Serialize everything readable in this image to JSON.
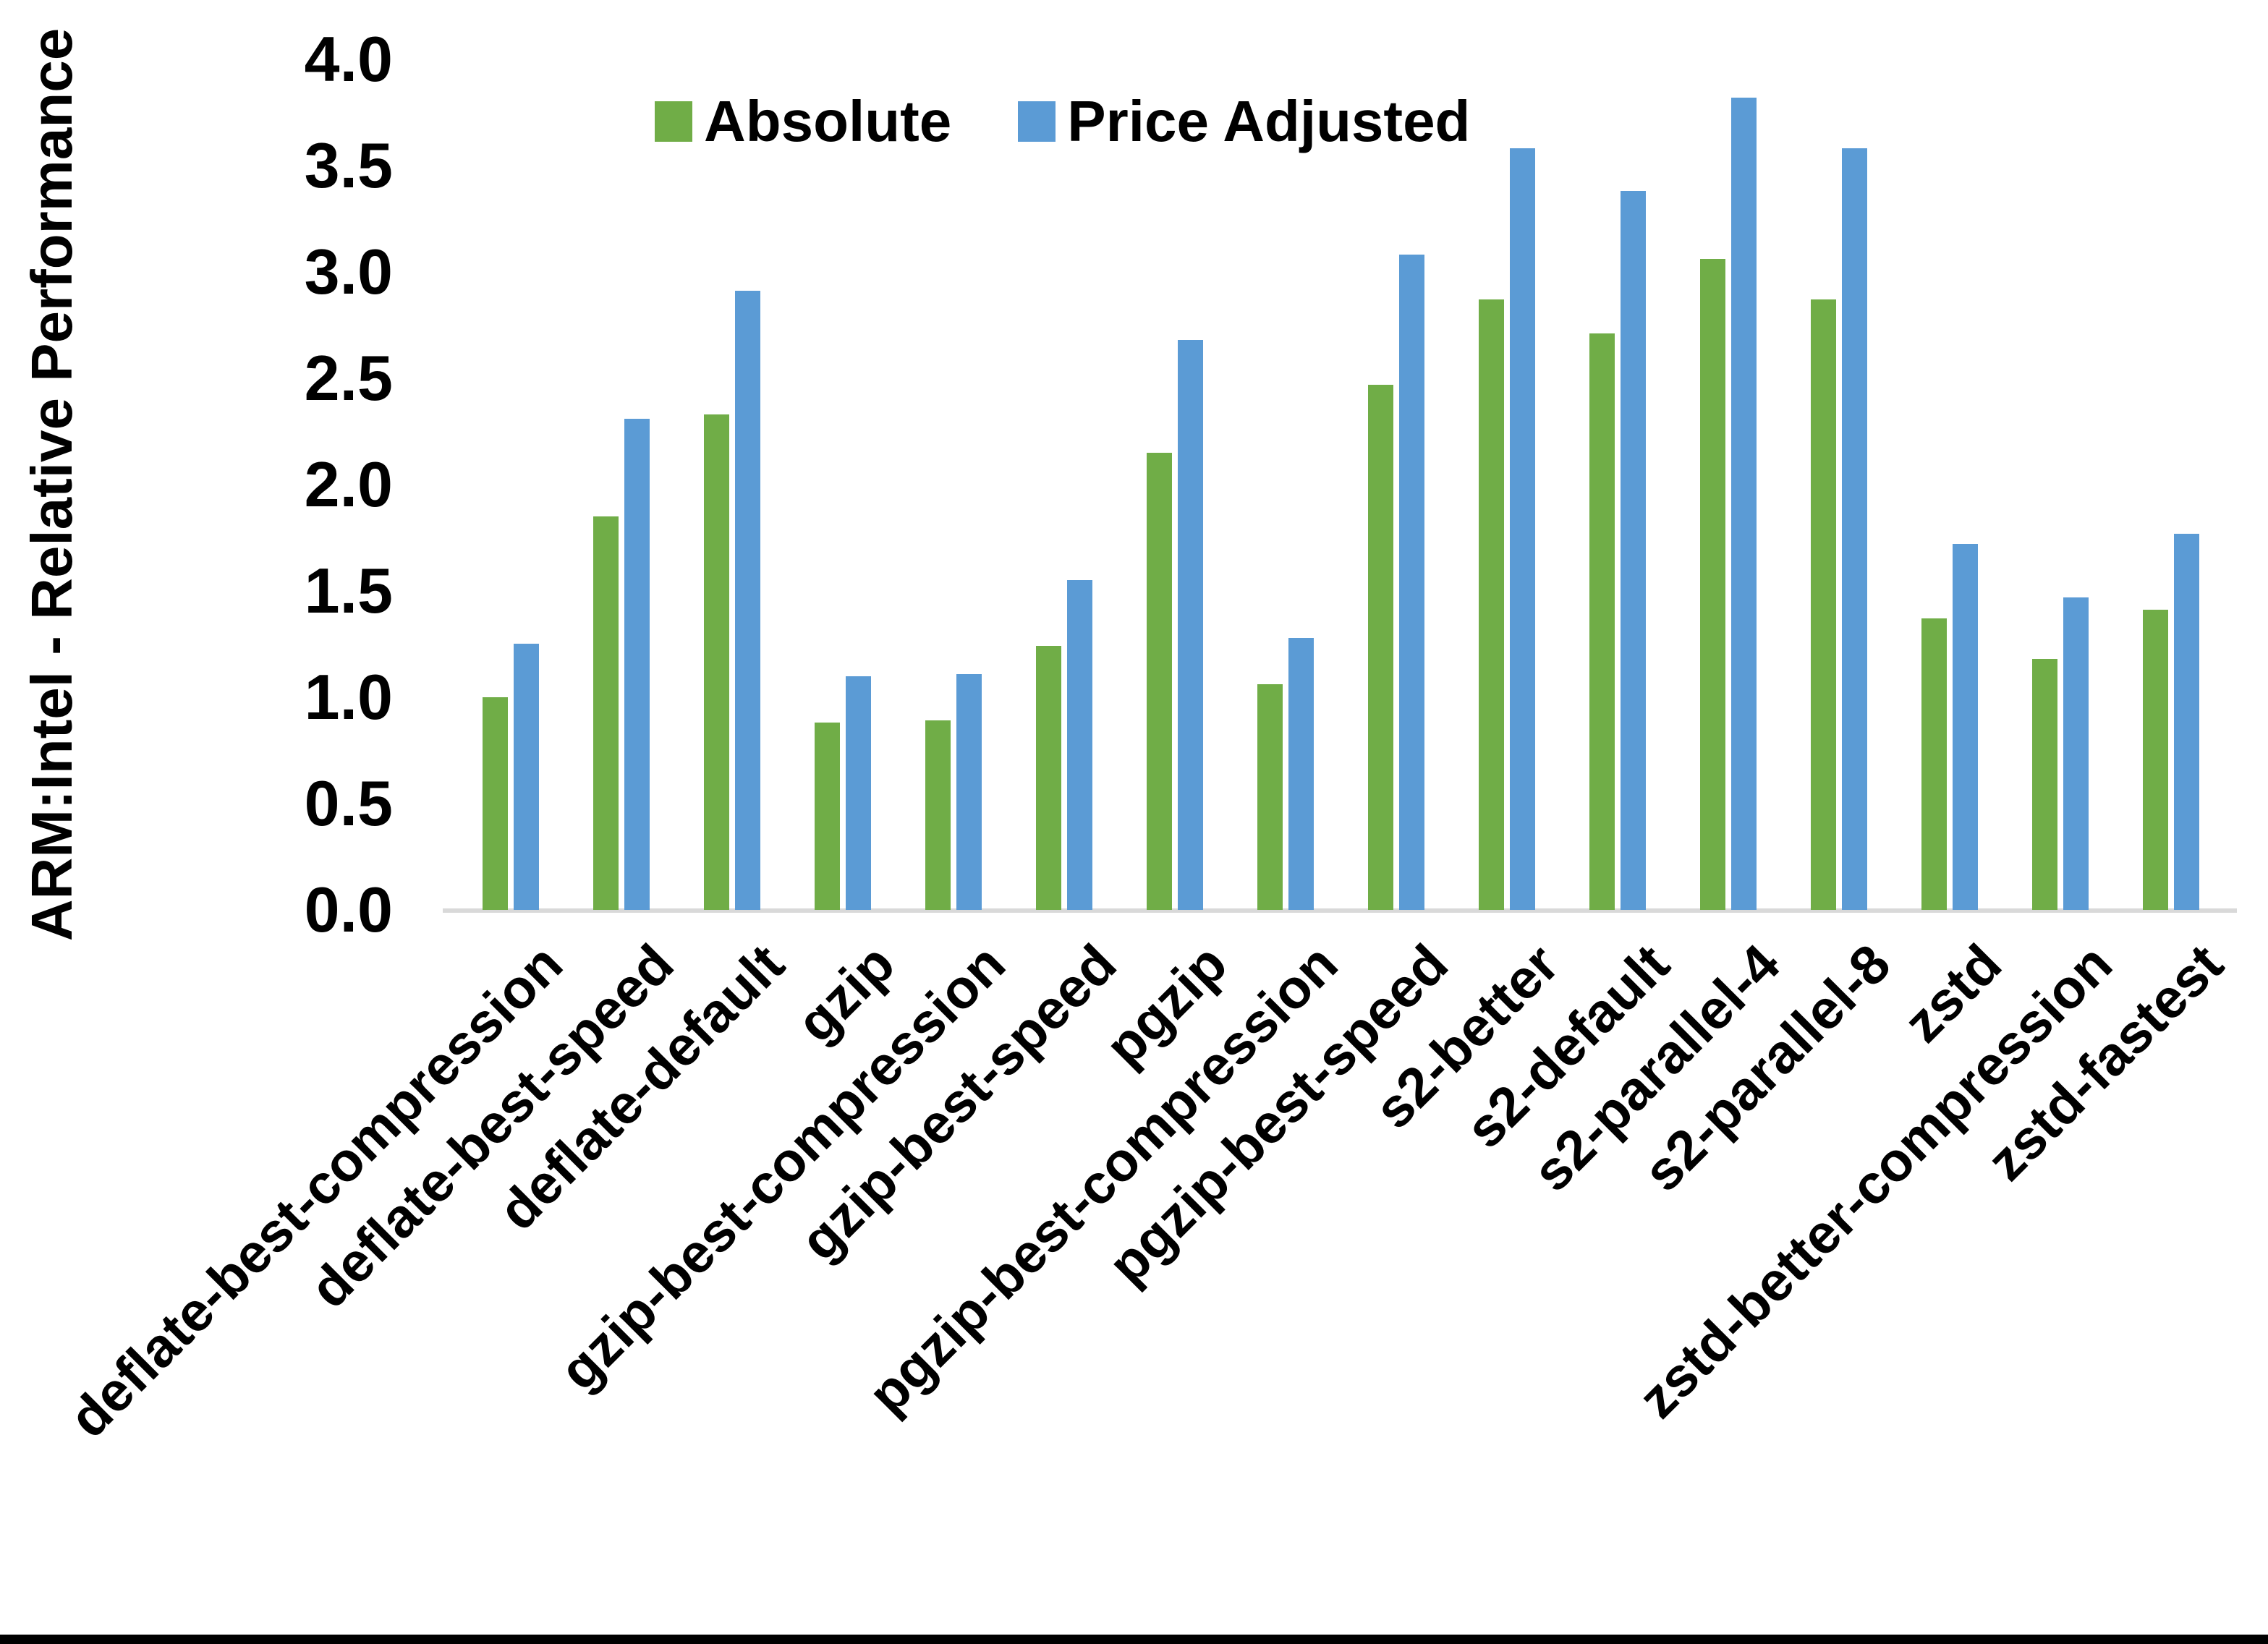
{
  "chart_data": {
    "type": "bar",
    "title": "",
    "xlabel": "",
    "ylabel": "ARM:Intel - Relative Performance",
    "ylim": [
      0.0,
      4.0
    ],
    "ytick_step": 0.5,
    "grid": false,
    "legend_position": "top-center",
    "categories": [
      "deflate-best-compression",
      "deflate-best-speed",
      "deflate-default",
      "gzip",
      "gzip-best-compression",
      "gzip-best-speed",
      "pgzip",
      "pgzip-best-compression",
      "pgzip-best-speed",
      "s2-better",
      "s2-default",
      "s2-parallel-4",
      "s2-parallel-8",
      "zstd",
      "zstd-better-compression",
      "zstd-fastest"
    ],
    "series": [
      {
        "name": "Absolute",
        "color": "#70AD47",
        "values": [
          1.0,
          1.85,
          2.33,
          0.88,
          0.89,
          1.24,
          2.15,
          1.06,
          2.47,
          2.87,
          2.71,
          3.06,
          2.87,
          1.37,
          1.18,
          1.41
        ]
      },
      {
        "name": "Price Adjusted",
        "color": "#5B9BD5",
        "values": [
          1.25,
          2.31,
          2.91,
          1.1,
          1.11,
          1.55,
          2.68,
          1.28,
          3.08,
          3.58,
          3.38,
          3.82,
          3.58,
          1.72,
          1.47,
          1.77
        ]
      }
    ]
  }
}
